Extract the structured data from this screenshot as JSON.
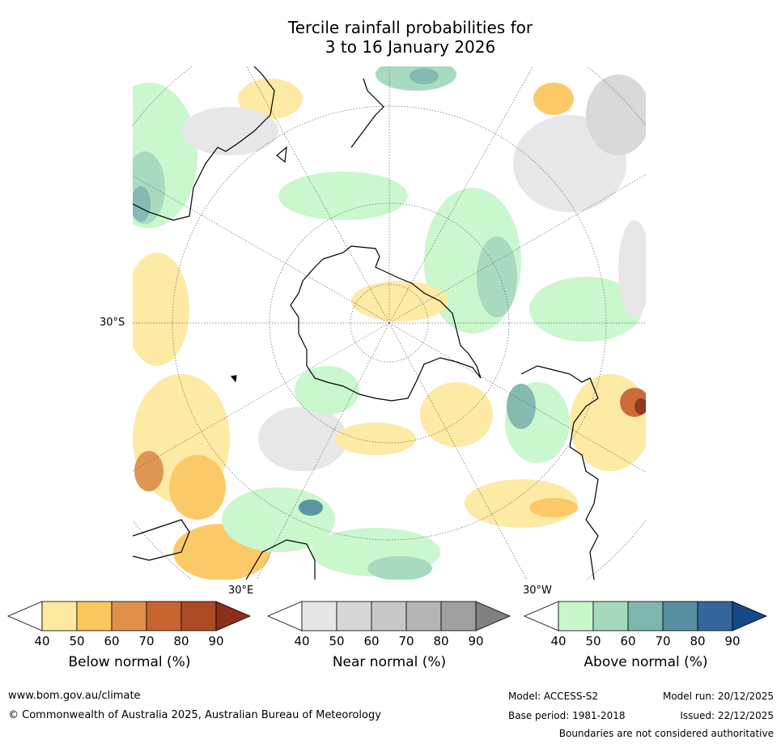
{
  "title": {
    "line1": "Tercile rainfall probabilities for",
    "line2": "3 to 16 January 2026"
  },
  "map_labels": {
    "lat_label": "30°S",
    "lon_label_left": "30°E",
    "lon_label_right": "30°W"
  },
  "legend": [
    {
      "title": "Below normal (%)",
      "ticks": [
        "40",
        "50",
        "60",
        "70",
        "80",
        "90"
      ],
      "colors": [
        "#ffffff",
        "#fde9a0",
        "#fbc75f",
        "#e0904a",
        "#c8642f",
        "#ad4a26",
        "#8c2e1a"
      ]
    },
    {
      "title": "Near normal (%)",
      "ticks": [
        "40",
        "50",
        "60",
        "70",
        "80",
        "90"
      ],
      "colors": [
        "#ffffff",
        "#e6e6e6",
        "#d7d7d7",
        "#c7c7c7",
        "#b4b4b4",
        "#a0a0a0",
        "#808080"
      ]
    },
    {
      "title": "Above normal (%)",
      "ticks": [
        "40",
        "50",
        "60",
        "70",
        "80",
        "90"
      ],
      "colors": [
        "#ffffff",
        "#c8f7cb",
        "#a4d9bd",
        "#7eb7ae",
        "#5690a0",
        "#34669b",
        "#144a86"
      ]
    }
  ],
  "footer": {
    "url": "www.bom.gov.au/climate",
    "copyright": "© Commonwealth of Australia 2025, Australian Bureau of Meteorology",
    "model": "Model: ACCESS-S2",
    "base_period": "Base period: 1981-2018",
    "model_run": "Model run: 20/12/2025",
    "issued": "Issued: 22/12/2025",
    "disclaimer": "Boundaries are not considered authoritative"
  }
}
